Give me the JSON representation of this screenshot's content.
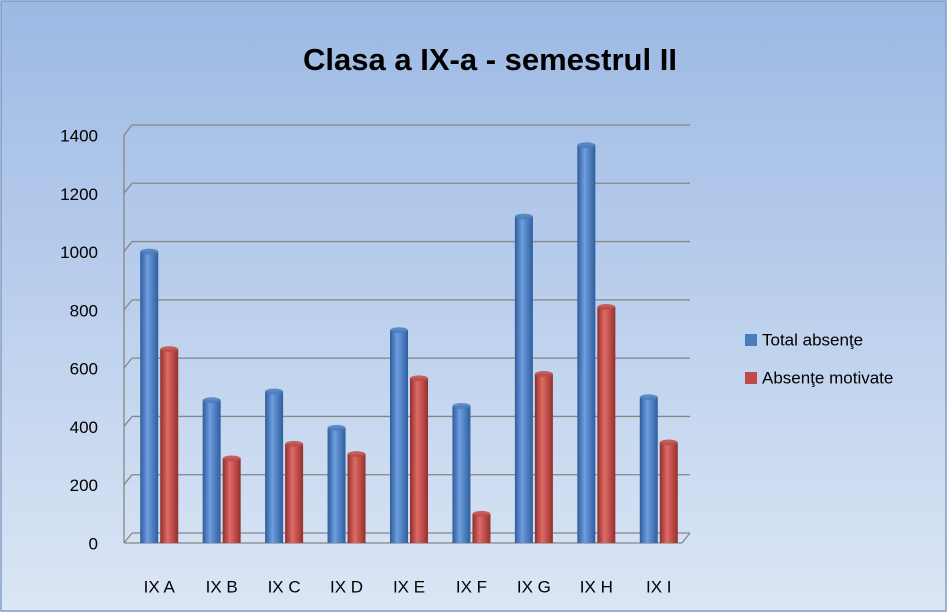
{
  "chart_data": {
    "type": "bar",
    "title": "Clasa a IX-a - semestrul II",
    "categories": [
      "IX A",
      "IX B",
      "IX C",
      "IX D",
      "IX E",
      "IX F",
      "IX G",
      "IX H",
      "IX I"
    ],
    "series": [
      {
        "name": "Total absenţe",
        "color": "#4a7ebb",
        "values": [
          1000,
          490,
          520,
          395,
          730,
          470,
          1120,
          1365,
          500
        ]
      },
      {
        "name": "Absenţe motivate",
        "color": "#be4b48",
        "values": [
          665,
          290,
          340,
          305,
          565,
          100,
          580,
          810,
          345
        ]
      }
    ],
    "ylim": [
      0,
      1400
    ],
    "yticks": [
      0,
      200,
      400,
      600,
      800,
      1000,
      1200,
      1400
    ],
    "grid": true,
    "legend": "right"
  }
}
